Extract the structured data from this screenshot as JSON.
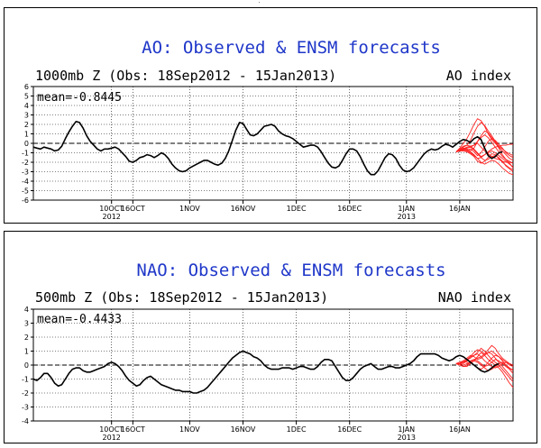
{
  "colors": {
    "title": "#1f37c9",
    "observed": "#000000",
    "forecast": "#ff2020",
    "grid": "#000000"
  },
  "chart_data": [
    {
      "type": "line",
      "title": "AO: Observed & ENSM forecasts",
      "subtitle_left": "1000mb Z (Obs: 18Sep2012 - 15Jan2013)",
      "subtitle_right": "AO index",
      "mean_label": "mean=-0.8445",
      "ylim": [
        -6,
        6
      ],
      "y_ticks": [
        "-6",
        "-5",
        "-4",
        "-3",
        "-2",
        "-1",
        "0",
        "1",
        "2",
        "3",
        "4",
        "5",
        "6"
      ],
      "x_ticks": [
        {
          "date": "2012-10-10",
          "label": "10OCT",
          "year": "2012"
        },
        {
          "date": "2012-10-16",
          "label": "16OCT",
          "year": ""
        },
        {
          "date": "2012-11-01",
          "label": "1NOV",
          "year": ""
        },
        {
          "date": "2012-11-16",
          "label": "16NOV",
          "year": ""
        },
        {
          "date": "2012-12-01",
          "label": "1DEC",
          "year": ""
        },
        {
          "date": "2012-12-16",
          "label": "16DEC",
          "year": ""
        },
        {
          "date": "2013-01-01",
          "label": "1JAN",
          "year": "2013"
        },
        {
          "date": "2013-01-16",
          "label": "16JAN",
          "year": ""
        }
      ],
      "x_range": [
        "2012-09-18",
        "2013-01-31"
      ],
      "grid": "dotted",
      "reference_line": 0,
      "observed": {
        "start_date": "2012-09-18",
        "values": [
          -0.4,
          -0.5,
          -0.6,
          -0.4,
          -0.5,
          -0.6,
          -0.8,
          -0.7,
          -0.3,
          0.5,
          1.2,
          1.8,
          2.3,
          2.2,
          1.6,
          0.8,
          0.2,
          -0.2,
          -0.6,
          -0.8,
          -0.6,
          -0.6,
          -0.5,
          -0.4,
          -0.6,
          -1.0,
          -1.4,
          -1.9,
          -2.0,
          -1.8,
          -1.5,
          -1.4,
          -1.2,
          -1.3,
          -1.5,
          -1.3,
          -1.0,
          -1.2,
          -1.6,
          -2.2,
          -2.6,
          -2.9,
          -3.0,
          -2.9,
          -2.6,
          -2.4,
          -2.2,
          -2.0,
          -1.8,
          -1.8,
          -2.0,
          -2.2,
          -2.3,
          -2.1,
          -1.6,
          -0.8,
          0.3,
          1.4,
          2.2,
          2.1,
          1.5,
          0.9,
          0.8,
          1.0,
          1.4,
          1.8,
          1.9,
          2.0,
          1.8,
          1.3,
          1.0,
          0.8,
          0.7,
          0.5,
          0.2,
          -0.1,
          -0.4,
          -0.3,
          -0.2,
          -0.2,
          -0.4,
          -0.9,
          -1.5,
          -2.1,
          -2.5,
          -2.6,
          -2.4,
          -1.8,
          -1.1,
          -0.6,
          -0.6,
          -0.8,
          -1.4,
          -2.2,
          -2.9,
          -3.3,
          -3.3,
          -2.9,
          -2.2,
          -1.5,
          -1.1,
          -1.2,
          -1.6,
          -2.3,
          -2.8,
          -3.0,
          -2.9,
          -2.6,
          -2.1,
          -1.6,
          -1.1,
          -0.8,
          -0.6,
          -0.7,
          -0.6,
          -0.3,
          -0.1,
          -0.2,
          -0.4,
          -0.1,
          0.2,
          0.4,
          0.3,
          0.1,
          0.5,
          0.7,
          0.4,
          -0.5,
          -1.3,
          -1.6,
          -1.4,
          -1.0,
          -0.9
        ]
      },
      "forecast": {
        "start_date": "2013-01-15",
        "members": [
          [
            -0.9,
            -0.5,
            0.0,
            0.5,
            1.2,
            2.0,
            2.6,
            2.4,
            1.8,
            1.0,
            0.4,
            0.0,
            -0.4,
            -0.8,
            -1.2,
            -1.6,
            -1.8
          ],
          [
            -0.9,
            -0.6,
            -0.4,
            -0.2,
            0.3,
            1.1,
            1.8,
            2.2,
            1.9,
            1.3,
            0.8,
            0.2,
            -0.3,
            -0.6,
            -0.9,
            -1.1,
            -1.3
          ],
          [
            -0.9,
            -0.7,
            -0.5,
            -0.6,
            -0.8,
            -0.5,
            0.2,
            0.8,
            1.3,
            1.1,
            0.6,
            0.1,
            -0.5,
            -1.2,
            -1.7,
            -2.1,
            -2.6
          ],
          [
            -0.9,
            -0.8,
            -0.6,
            -0.4,
            -0.3,
            -0.6,
            -1.0,
            -1.4,
            -1.2,
            -0.9,
            -0.6,
            -0.4,
            -0.3,
            -0.2,
            -0.2,
            -0.1,
            -0.1
          ],
          [
            -0.9,
            -0.8,
            -0.7,
            -0.8,
            -1.0,
            -1.3,
            -1.6,
            -1.5,
            -1.2,
            -1.0,
            -0.8,
            -1.0,
            -1.3,
            -1.6,
            -1.9,
            -2.2,
            -2.5
          ],
          [
            -0.9,
            -0.7,
            -0.6,
            -0.7,
            -0.9,
            -1.2,
            -1.6,
            -2.0,
            -2.2,
            -2.0,
            -1.8,
            -1.9,
            -2.2,
            -2.6,
            -2.9,
            -3.2,
            -3.3
          ],
          [
            -0.9,
            -0.6,
            -0.3,
            -0.2,
            -0.3,
            -0.2,
            0.2,
            0.6,
            0.9,
            0.6,
            0.1,
            -0.4,
            -0.9,
            -1.4,
            -1.7,
            -1.9,
            -2.1
          ],
          [
            -0.9,
            -0.8,
            -0.8,
            -0.9,
            -1.1,
            -1.4,
            -1.9,
            -2.1,
            -1.9,
            -1.5,
            -1.1,
            -1.2,
            -1.6,
            -2.0,
            -2.3,
            -2.6,
            -2.8
          ],
          [
            -0.9,
            -0.7,
            -0.5,
            -0.5,
            -0.4,
            -0.2,
            0.0,
            -0.4,
            -0.8,
            -1.1,
            -1.4,
            -1.6,
            -1.7,
            -1.9,
            -2.0,
            -2.0,
            -2.1
          ],
          [
            -0.9,
            -0.8,
            -0.6,
            -0.7,
            -0.6,
            -0.9,
            -1.3,
            -1.0,
            -0.4,
            0.2,
            0.5,
            0.3,
            -0.1,
            -0.5,
            -1.0,
            -1.3,
            -1.5
          ],
          [
            -0.9,
            -0.7,
            -0.6,
            -0.5,
            -0.4,
            -0.7,
            -1.1,
            -1.5,
            -1.8,
            -1.7,
            -1.4,
            -1.3,
            -1.5,
            -1.9,
            -2.4,
            -2.7,
            -3.0
          ]
        ]
      }
    },
    {
      "type": "line",
      "title": "NAO: Observed & ENSM forecasts",
      "subtitle_left": "500mb Z (Obs: 18Sep2012 - 15Jan2013)",
      "subtitle_right": "NAO index",
      "mean_label": "mean=-0.4433",
      "ylim": [
        -4,
        4
      ],
      "y_ticks": [
        "-4",
        "-3",
        "-2",
        "-1",
        "0",
        "1",
        "2",
        "3",
        "4"
      ],
      "x_ticks": [
        {
          "date": "2012-10-10",
          "label": "10OCT",
          "year": "2012"
        },
        {
          "date": "2012-10-16",
          "label": "16OCT",
          "year": ""
        },
        {
          "date": "2012-11-01",
          "label": "1NOV",
          "year": ""
        },
        {
          "date": "2012-11-16",
          "label": "16NOV",
          "year": ""
        },
        {
          "date": "2012-12-01",
          "label": "1DEC",
          "year": ""
        },
        {
          "date": "2012-12-16",
          "label": "16DEC",
          "year": ""
        },
        {
          "date": "2013-01-01",
          "label": "1JAN",
          "year": "2013"
        },
        {
          "date": "2013-01-16",
          "label": "16JAN",
          "year": ""
        }
      ],
      "x_range": [
        "2012-09-18",
        "2013-01-31"
      ],
      "grid": "dotted",
      "reference_line": 0,
      "observed": {
        "start_date": "2012-09-18",
        "values": [
          -1.0,
          -1.1,
          -0.9,
          -0.6,
          -0.6,
          -0.9,
          -1.3,
          -1.5,
          -1.4,
          -1.0,
          -0.6,
          -0.3,
          -0.2,
          -0.2,
          -0.4,
          -0.5,
          -0.5,
          -0.4,
          -0.3,
          -0.2,
          -0.1,
          0.1,
          0.2,
          0.1,
          -0.1,
          -0.4,
          -0.8,
          -1.1,
          -1.3,
          -1.5,
          -1.4,
          -1.1,
          -0.9,
          -0.8,
          -1.0,
          -1.2,
          -1.4,
          -1.5,
          -1.6,
          -1.7,
          -1.8,
          -1.8,
          -1.9,
          -1.9,
          -1.9,
          -2.0,
          -2.0,
          -1.9,
          -1.8,
          -1.6,
          -1.3,
          -1.0,
          -0.7,
          -0.4,
          -0.1,
          0.2,
          0.5,
          0.7,
          0.9,
          1.0,
          0.9,
          0.8,
          0.6,
          0.5,
          0.3,
          0.0,
          -0.2,
          -0.3,
          -0.3,
          -0.3,
          -0.2,
          -0.2,
          -0.2,
          -0.3,
          -0.2,
          -0.1,
          -0.1,
          -0.2,
          -0.3,
          -0.3,
          -0.1,
          0.2,
          0.4,
          0.4,
          0.3,
          -0.1,
          -0.5,
          -0.9,
          -1.1,
          -1.1,
          -0.9,
          -0.6,
          -0.3,
          -0.1,
          0.0,
          0.1,
          -0.1,
          -0.3,
          -0.3,
          -0.2,
          -0.1,
          -0.1,
          -0.2,
          -0.2,
          -0.1,
          0.0,
          0.1,
          0.3,
          0.6,
          0.8,
          0.8,
          0.8,
          0.8,
          0.8,
          0.7,
          0.5,
          0.4,
          0.3,
          0.4,
          0.6,
          0.7,
          0.6,
          0.4,
          0.2,
          0.0,
          -0.2,
          -0.4,
          -0.5,
          -0.4,
          -0.2,
          0.0,
          0.1
        ]
      },
      "forecast": {
        "start_date": "2013-01-15",
        "members": [
          [
            0.1,
            0.2,
            0.1,
            0.3,
            0.6,
            0.9,
            1.1,
            1.0,
            0.8,
            1.1,
            1.4,
            1.2,
            0.8,
            0.5,
            0.3,
            0.1,
            0.0
          ],
          [
            0.1,
            0.0,
            0.2,
            0.4,
            0.5,
            0.7,
            0.9,
            1.2,
            1.0,
            0.7,
            0.4,
            0.2,
            0.0,
            -0.3,
            -0.6,
            -0.9,
            -1.2
          ],
          [
            0.1,
            0.1,
            0.2,
            0.3,
            0.3,
            0.4,
            0.5,
            0.6,
            0.8,
            0.9,
            1.0,
            0.8,
            0.6,
            0.3,
            0.0,
            -0.2,
            -0.4
          ],
          [
            0.1,
            0.2,
            0.3,
            0.2,
            0.1,
            0.3,
            0.6,
            0.9,
            0.7,
            0.4,
            0.2,
            0.0,
            -0.2,
            -0.5,
            -0.9,
            -1.3,
            -1.6
          ],
          [
            0.1,
            0.0,
            -0.1,
            0.0,
            0.2,
            0.4,
            0.3,
            0.1,
            -0.1,
            0.0,
            0.2,
            0.4,
            0.3,
            0.1,
            -0.1,
            -0.3,
            -0.3
          ],
          [
            0.1,
            0.1,
            0.0,
            0.1,
            0.2,
            0.0,
            -0.2,
            -0.3,
            -0.1,
            0.2,
            0.5,
            0.7,
            0.6,
            0.4,
            0.2,
            0.0,
            -0.1
          ],
          [
            0.1,
            0.2,
            0.2,
            0.4,
            0.6,
            0.7,
            0.8,
            0.6,
            0.3,
            0.1,
            -0.1,
            -0.2,
            -0.1,
            0.1,
            0.2,
            0.1,
            0.0
          ],
          [
            0.1,
            0.1,
            0.3,
            0.5,
            0.7,
            0.6,
            0.4,
            0.5,
            0.7,
            0.9,
            0.8,
            0.5,
            0.2,
            -0.1,
            -0.4,
            -0.7,
            -1.0
          ],
          [
            0.1,
            0.0,
            -0.1,
            -0.1,
            0.1,
            0.3,
            0.2,
            0.0,
            -0.2,
            -0.4,
            -0.3,
            -0.1,
            0.1,
            0.2,
            0.0,
            -0.3,
            -0.6
          ]
        ]
      }
    }
  ]
}
